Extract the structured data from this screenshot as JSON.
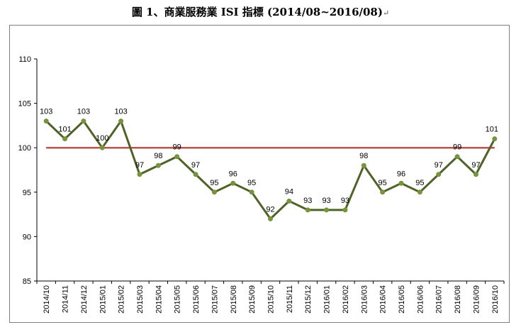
{
  "title": "圖 1、商業服務業 ISI 指標 (2014/08~2016/08)",
  "title_mark": "↵",
  "colors": {
    "series_line": "#4f6228",
    "series_marker": "#77933c",
    "reference_line": "#c0504d",
    "frame": "#7f7f7f",
    "axis": "#000000"
  },
  "chart_data": {
    "type": "line",
    "title": "圖 1、商業服務業 ISI 指標 (2014/08~2016/08)",
    "xlabel": "",
    "ylabel": "",
    "ylim": [
      85,
      110
    ],
    "yticks": [
      85,
      90,
      95,
      100,
      105,
      110
    ],
    "grid": false,
    "legend": "none",
    "categories": [
      "2014/10",
      "2014/11",
      "2014/12",
      "2015/01",
      "2015/02",
      "2015/03",
      "2015/04",
      "2015/05",
      "2015/06",
      "2015/07",
      "2015/08",
      "2015/09",
      "2015/10",
      "2015/11",
      "2015/12",
      "2016/01",
      "2016/02",
      "2016/03",
      "2016/04",
      "2016/05",
      "2016/06",
      "2016/07",
      "2016/08",
      "2016/09",
      "2016/10"
    ],
    "series": [
      {
        "values": [
          103,
          101,
          103,
          100,
          103,
          97,
          98,
          99,
          97,
          95,
          96,
          95,
          92,
          94,
          93,
          93,
          93,
          98,
          95,
          96,
          95,
          97,
          99,
          97,
          101
        ]
      }
    ],
    "reference_line": 100
  }
}
